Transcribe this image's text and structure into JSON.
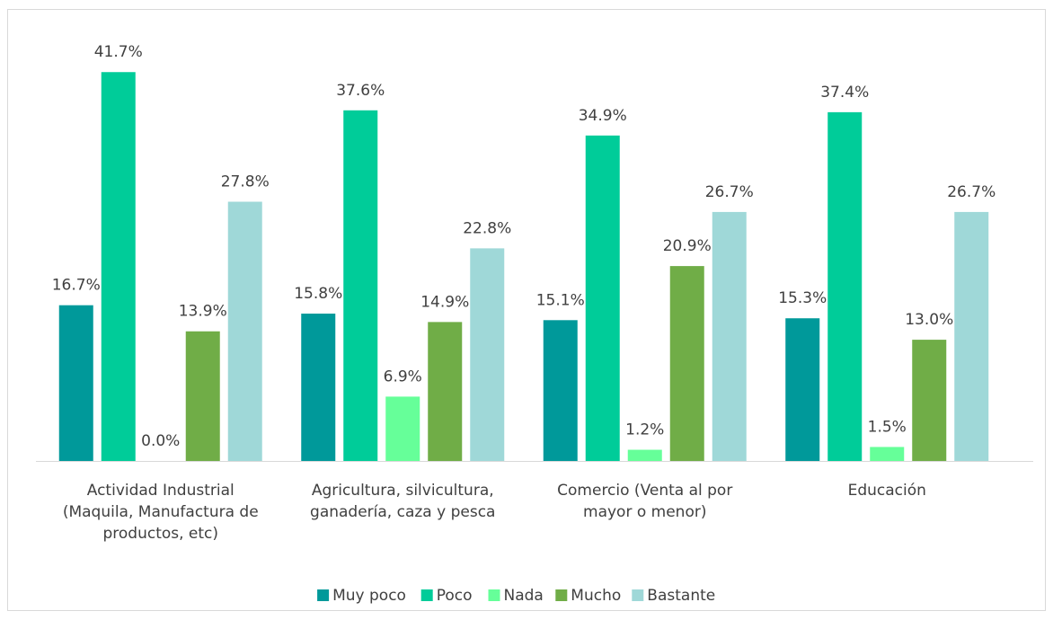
{
  "chart_data": {
    "type": "bar",
    "categories": [
      "Actividad Industrial (Maquila, Manufactura de productos, etc)",
      "Agricultura, silvicultura, ganadería, caza y pesca",
      "Comercio (Venta al por mayor o menor)",
      "Educación"
    ],
    "series": [
      {
        "name": "Muy poco",
        "color": "#00999a",
        "values": [
          16.7,
          15.8,
          15.1,
          15.3
        ],
        "value_labels": [
          "16.7%",
          "15.8%",
          "15.1%",
          "15.3%"
        ]
      },
      {
        "name": "Poco",
        "color": "#00cc99",
        "values": [
          41.7,
          37.6,
          34.9,
          37.4
        ],
        "value_labels": [
          "41.7%",
          "37.6%",
          "34.9%",
          "37.4%"
        ]
      },
      {
        "name": "Nada",
        "color": "#66ff99",
        "values": [
          0.0,
          6.9,
          1.2,
          1.5
        ],
        "value_labels": [
          "0.0%",
          "6.9%",
          "1.2%",
          "1.5%"
        ]
      },
      {
        "name": "Mucho",
        "color": "#70ad47",
        "values": [
          13.9,
          14.9,
          20.9,
          13.0
        ],
        "value_labels": [
          "13.9%",
          "14.9%",
          "20.9%",
          "13.0%"
        ]
      },
      {
        "name": "Bastante",
        "color": "#9fd8d8",
        "values": [
          27.8,
          22.8,
          26.7,
          26.7
        ],
        "value_labels": [
          "27.8%",
          "22.8%",
          "26.7%",
          "26.7%"
        ]
      }
    ],
    "ylim": [
      0,
      45
    ],
    "legend": "bottom"
  }
}
